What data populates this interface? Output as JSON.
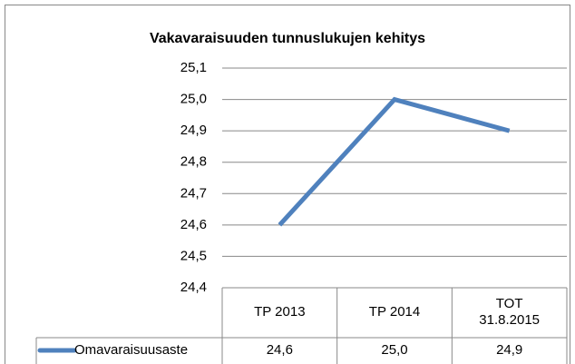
{
  "chart_data": {
    "type": "line",
    "title": "Vakavaraisuuden tunnuslukujen kehitys",
    "categories": [
      "TP 2013",
      "TP 2014",
      "TOT 31.8.2015"
    ],
    "series": [
      {
        "name": "Omavaraisuusaste",
        "color": "#4f81bd",
        "values": [
          24.6,
          25.0,
          24.9
        ],
        "value_labels": [
          "24,6",
          "25,0",
          "24,9"
        ]
      }
    ],
    "ylim": [
      24.4,
      25.1
    ],
    "yticks": [
      {
        "value": 24.4,
        "label": "24,4"
      },
      {
        "value": 24.5,
        "label": "24,5"
      },
      {
        "value": 24.6,
        "label": "24,6"
      },
      {
        "value": 24.7,
        "label": "24,7"
      },
      {
        "value": 24.8,
        "label": "24,8"
      },
      {
        "value": 24.9,
        "label": "24,9"
      },
      {
        "value": 25.0,
        "label": "25,0"
      },
      {
        "value": 25.1,
        "label": "25,1"
      }
    ],
    "grid": true
  }
}
